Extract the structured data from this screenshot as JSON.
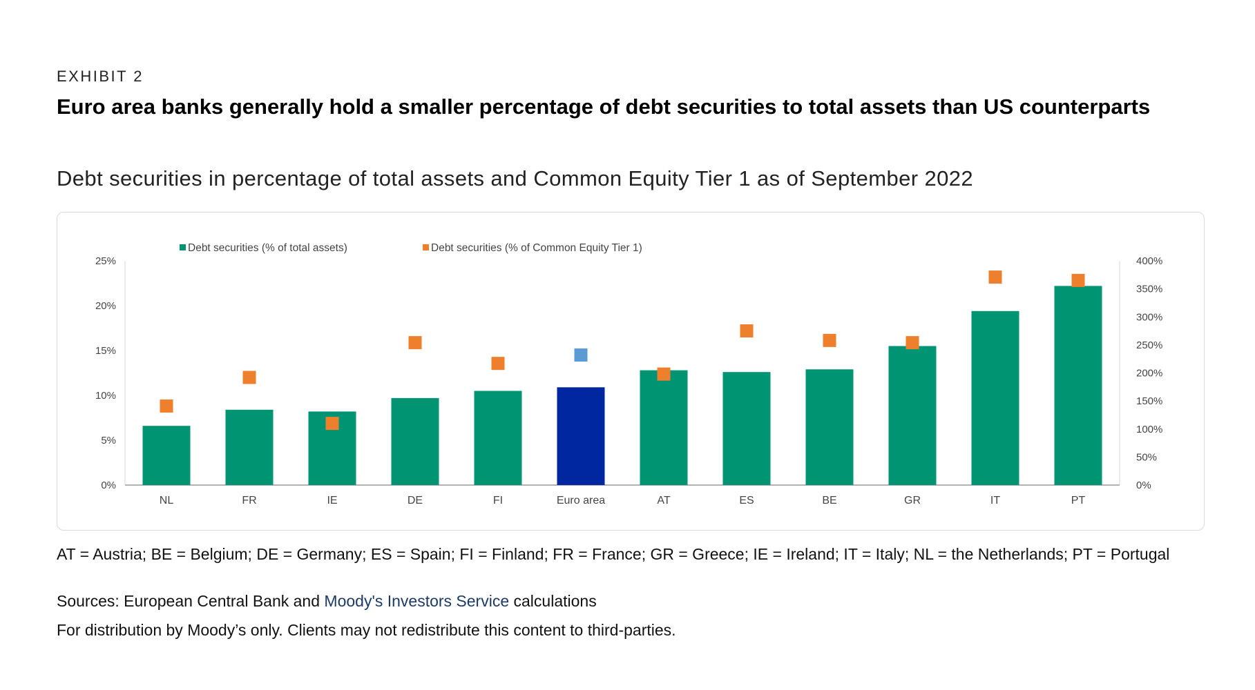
{
  "header": {
    "exhibit": "EXHIBIT 2",
    "title": "Euro area banks generally hold a smaller percentage of debt securities to total assets than US counterparts",
    "subtitle": "Debt securities in percentage of total assets and Common Equity Tier 1 as of September 2022"
  },
  "footer": {
    "abbreviations": "AT = Austria; BE = Belgium; DE = Germany; ES = Spain; FI = Finland; FR = France; GR = Greece; IE = Ireland; IT = Italy; NL = the Netherlands; PT = Portugal",
    "sources_prefix": "Sources: European Central Bank and ",
    "sources_link": "Moody's Investors Service",
    "sources_suffix": " calculations",
    "distribution": "For distribution by Moody’s only. Clients may not redistribute this content to third-parties."
  },
  "colors": {
    "bar": "#009473",
    "bar_highlight": "#0026a0",
    "marker": "#ee7f2d",
    "marker_highlight": "#5b9bd5",
    "axis": "#999999"
  },
  "chart_data": {
    "type": "bar",
    "categories": [
      "NL",
      "FR",
      "IE",
      "DE",
      "FI",
      "Euro area",
      "AT",
      "ES",
      "BE",
      "GR",
      "IT",
      "PT"
    ],
    "highlight_category": "Euro area",
    "series": [
      {
        "name": "Debt securities (% of total assets)",
        "type": "bar",
        "axis": "left",
        "values": [
          6.6,
          8.4,
          8.2,
          9.7,
          10.5,
          10.9,
          12.8,
          12.6,
          12.9,
          15.5,
          19.4,
          22.2
        ]
      },
      {
        "name": "Debt securities (% of Common Equity Tier 1)",
        "type": "scatter",
        "marker": "square",
        "axis": "right",
        "values": [
          141,
          192,
          110,
          254,
          217,
          232,
          198,
          275,
          258,
          254,
          371,
          365
        ]
      }
    ],
    "y_left": {
      "min": 0,
      "max": 25,
      "ticks": [
        "0%",
        "5%",
        "10%",
        "15%",
        "20%",
        "25%"
      ]
    },
    "y_right": {
      "min": 0,
      "max": 400,
      "ticks": [
        "0%",
        "50%",
        "100%",
        "150%",
        "200%",
        "250%",
        "300%",
        "350%",
        "400%"
      ]
    },
    "grid": false,
    "legend_position": "top"
  }
}
